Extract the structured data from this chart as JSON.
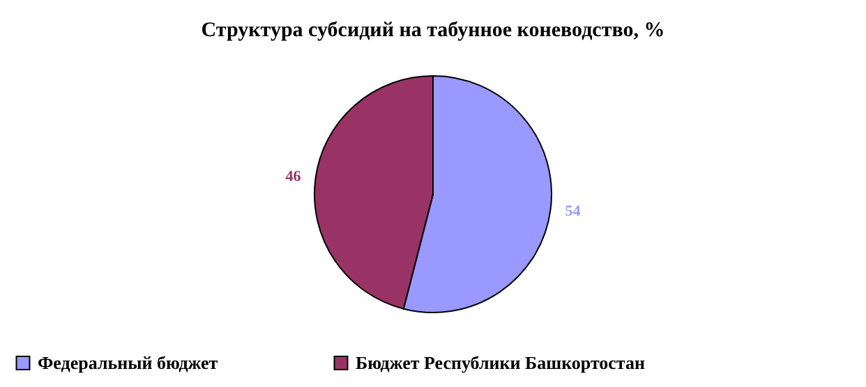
{
  "chart_data": {
    "type": "pie",
    "title": "Структура субсидий на табунное коневодство, %",
    "categories": [
      "Федеральный бюджет",
      "Бюджет Республики Башкортостан"
    ],
    "values": [
      54,
      46
    ],
    "colors": [
      "#9999ff",
      "#993366"
    ],
    "data_labels": true,
    "legend": "bottom"
  }
}
